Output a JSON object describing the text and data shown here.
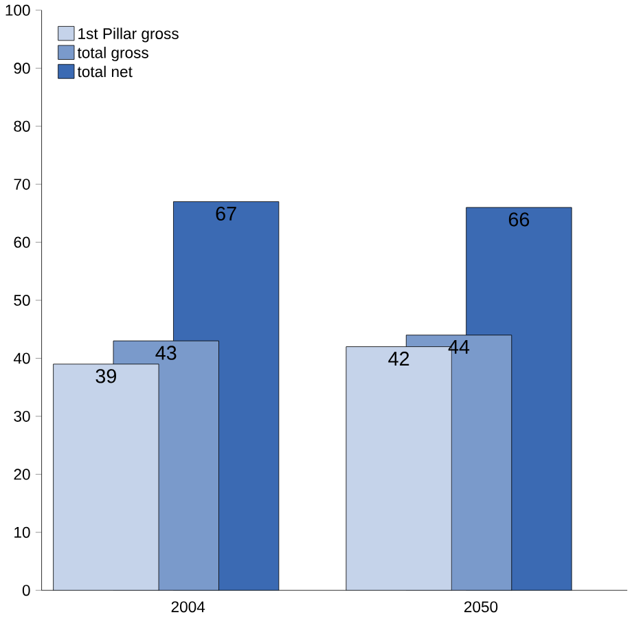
{
  "chart_data": {
    "type": "bar",
    "categories": [
      "2004",
      "2050"
    ],
    "series": [
      {
        "name": "1st Pillar gross",
        "color": "#c5d3ea",
        "values": [
          39,
          42
        ]
      },
      {
        "name": "total gross",
        "color": "#7a9acb",
        "values": [
          43,
          44
        ]
      },
      {
        "name": "total net",
        "color": "#3b6ab3",
        "values": [
          67,
          66
        ]
      }
    ],
    "ylim": [
      0,
      100
    ],
    "yticks": [
      0,
      10,
      20,
      30,
      40,
      50,
      60,
      70,
      80,
      90,
      100
    ],
    "data_labels": true,
    "legend": "top left",
    "grid": false
  }
}
